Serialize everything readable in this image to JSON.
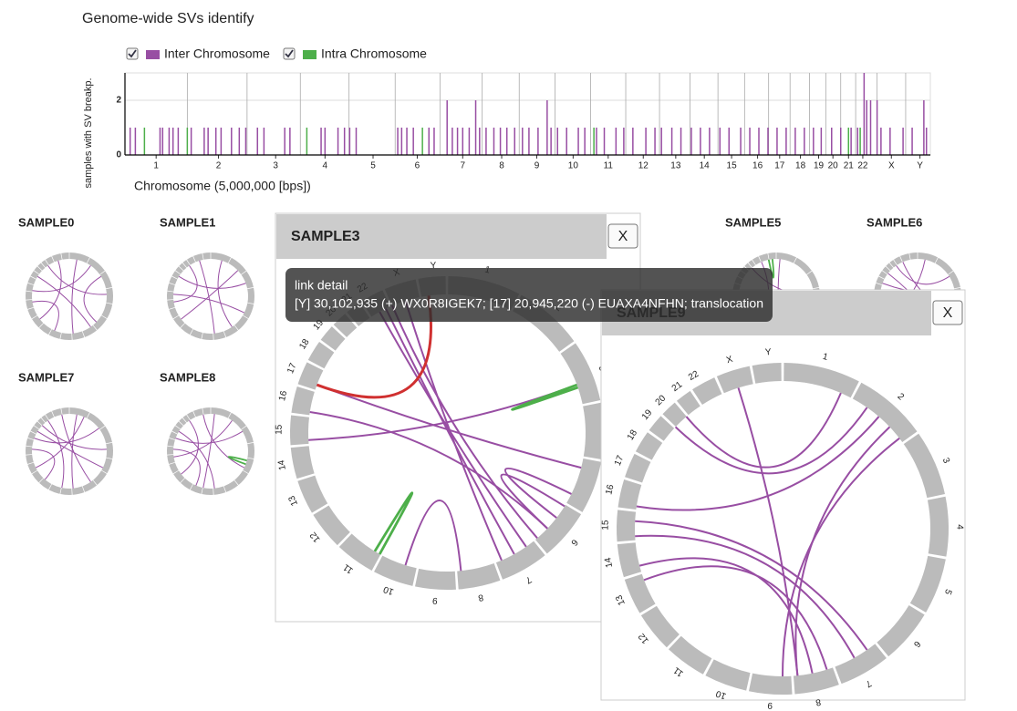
{
  "header": {
    "title": "Genome-wide SVs identify"
  },
  "chart_data": {
    "type": "bar",
    "xlabel": "Chromosome (5,000,000 [bps])",
    "ylabel": "samples with SV breakp.",
    "xlim": [
      0,
      620
    ],
    "ylim": [
      0,
      3
    ],
    "yticks": [
      0,
      2
    ],
    "xticks": [
      {
        "value": 24,
        "label": "1"
      },
      {
        "value": 72,
        "label": "2"
      },
      {
        "value": 116,
        "label": "3"
      },
      {
        "value": 154,
        "label": "4"
      },
      {
        "value": 191,
        "label": "5"
      },
      {
        "value": 225,
        "label": "6"
      },
      {
        "value": 260,
        "label": "7"
      },
      {
        "value": 290,
        "label": "8"
      },
      {
        "value": 317,
        "label": "9"
      },
      {
        "value": 345,
        "label": "10"
      },
      {
        "value": 372,
        "label": "11"
      },
      {
        "value": 399,
        "label": "12"
      },
      {
        "value": 424,
        "label": "13"
      },
      {
        "value": 446,
        "label": "14"
      },
      {
        "value": 467,
        "label": "15"
      },
      {
        "value": 487,
        "label": "16"
      },
      {
        "value": 504,
        "label": "17"
      },
      {
        "value": 520,
        "label": "18"
      },
      {
        "value": 534,
        "label": "19"
      },
      {
        "value": 545,
        "label": "20"
      },
      {
        "value": 557,
        "label": "21"
      },
      {
        "value": 568,
        "label": "22"
      },
      {
        "value": 590,
        "label": "X"
      },
      {
        "value": 612,
        "label": "Y"
      }
    ],
    "x": [
      4,
      8,
      15,
      27,
      29,
      34,
      37,
      41,
      48,
      51,
      61,
      64,
      70,
      74,
      82,
      88,
      93,
      102,
      107,
      123,
      127,
      140,
      151,
      154,
      164,
      169,
      173,
      178,
      210,
      213,
      217,
      222,
      229,
      234,
      238,
      248,
      252,
      256,
      260,
      265,
      270,
      273,
      278,
      284,
      289,
      294,
      300,
      306,
      311,
      318,
      325,
      328,
      333,
      340,
      349,
      354,
      361,
      363,
      369,
      378,
      384,
      391,
      401,
      408,
      413,
      421,
      428,
      436,
      443,
      450,
      458,
      465,
      474,
      481,
      488,
      495,
      502,
      509,
      516,
      523,
      530,
      536,
      544,
      551,
      557,
      559,
      564,
      566,
      569,
      571,
      574,
      579,
      582,
      589,
      599,
      606,
      615,
      617
    ],
    "series": [
      {
        "name": "Inter Chromosome",
        "color": "#984ea3",
        "checked": true,
        "values": [
          1,
          1,
          0,
          1,
          1,
          1,
          1,
          1,
          0,
          1,
          1,
          1,
          1,
          1,
          1,
          1,
          1,
          1,
          1,
          1,
          1,
          0,
          1,
          1,
          1,
          1,
          1,
          1,
          1,
          1,
          1,
          1,
          0,
          1,
          1,
          2,
          1,
          1,
          1,
          1,
          2,
          1,
          1,
          1,
          1,
          1,
          1,
          1,
          1,
          1,
          2,
          1,
          1,
          1,
          1,
          1,
          0,
          1,
          1,
          1,
          1,
          1,
          1,
          1,
          1,
          1,
          1,
          1,
          1,
          1,
          1,
          1,
          1,
          1,
          1,
          1,
          1,
          1,
          1,
          1,
          1,
          1,
          1,
          1,
          0,
          1,
          1,
          0,
          3,
          2,
          2,
          2,
          1,
          1,
          1,
          1,
          2,
          1
        ]
      },
      {
        "name": "Intra Chromosome",
        "color": "#4daf4a",
        "checked": true,
        "values": [
          0,
          0,
          1,
          0,
          0,
          0,
          0,
          0,
          1,
          0,
          0,
          0,
          0,
          0,
          0,
          0,
          0,
          0,
          0,
          0,
          0,
          1,
          0,
          0,
          0,
          0,
          0,
          0,
          0,
          0,
          0,
          0,
          1,
          0,
          0,
          0,
          0,
          0,
          0,
          0,
          0,
          0,
          0,
          0,
          0,
          0,
          0,
          0,
          0,
          0,
          0,
          0,
          0,
          0,
          0,
          0,
          1,
          0,
          0,
          0,
          0,
          0,
          0,
          0,
          0,
          0,
          0,
          0,
          0,
          0,
          0,
          0,
          0,
          0,
          0,
          0,
          0,
          0,
          0,
          0,
          0,
          0,
          0,
          0,
          1,
          0,
          0,
          1,
          0,
          0,
          0,
          0,
          0,
          0,
          0,
          0,
          0,
          0
        ]
      }
    ]
  },
  "thumbnails": [
    {
      "name": "SAMPLE0",
      "inter": [
        [
          20,
          300
        ],
        [
          60,
          480
        ],
        [
          100,
          230
        ],
        [
          150,
          560
        ],
        [
          250,
          520
        ],
        [
          400,
          590
        ],
        [
          350,
          450
        ]
      ],
      "intra": []
    },
    {
      "name": "SAMPLE1",
      "inter": [
        [
          30,
          250
        ],
        [
          80,
          400
        ],
        [
          120,
          520
        ],
        [
          300,
          590
        ],
        [
          200,
          470
        ],
        [
          450,
          560
        ]
      ],
      "intra": []
    },
    {
      "name": "SAMPLE5",
      "inter": [
        [
          10,
          300
        ],
        [
          550,
          150
        ],
        [
          580,
          350
        ]
      ],
      "intra": [
        [
          600,
          610
        ]
      ]
    },
    {
      "name": "SAMPLE6",
      "inter": [
        [
          500,
          150
        ],
        [
          530,
          250
        ],
        [
          560,
          100
        ],
        [
          20,
          400
        ],
        [
          580,
          200
        ]
      ],
      "intra": []
    },
    {
      "name": "SAMPLE7",
      "inter": [
        [
          20,
          300
        ],
        [
          40,
          420
        ],
        [
          90,
          500
        ],
        [
          150,
          540
        ],
        [
          250,
          600
        ],
        [
          330,
          560
        ],
        [
          380,
          470
        ],
        [
          200,
          520
        ]
      ],
      "intra": []
    },
    {
      "name": "SAMPLE8",
      "inter": [
        [
          10,
          330
        ],
        [
          60,
          450
        ],
        [
          100,
          500
        ],
        [
          300,
          520
        ],
        [
          350,
          470
        ],
        [
          400,
          560
        ],
        [
          200,
          600
        ]
      ],
      "intra": [
        [
          180,
          190
        ]
      ]
    }
  ],
  "dialogs": [
    {
      "title": "SAMPLE3",
      "close": "X",
      "inter": [
        [
          570,
          250
        ],
        [
          575,
          260
        ],
        [
          580,
          240
        ],
        [
          590,
          270
        ],
        [
          500,
          180
        ],
        [
          480,
          230
        ],
        [
          200,
          220
        ],
        [
          210,
          230
        ],
        [
          460,
          120
        ],
        [
          300,
          340
        ]
      ],
      "intra": [
        [
          120,
          122
        ],
        [
          360,
          364
        ]
      ],
      "selected": {
        "link": [
          607,
          500
        ],
        "color": "#d03030"
      }
    },
    {
      "title": "SAMPLE9",
      "close": "X",
      "inter": [
        [
          540,
          60
        ],
        [
          550,
          40
        ],
        [
          460,
          260
        ],
        [
          470,
          250
        ],
        [
          480,
          70
        ],
        [
          440,
          290
        ],
        [
          430,
          280
        ],
        [
          80,
          300
        ],
        [
          90,
          310
        ],
        [
          590,
          300
        ]
      ],
      "intra": []
    }
  ],
  "tooltip": {
    "title": "link detail",
    "text": "[Y] 30,102,935 (+) WX0R8IGEK7; [17] 20,945,220 (-) EUAXA4NFHN; translocation"
  }
}
